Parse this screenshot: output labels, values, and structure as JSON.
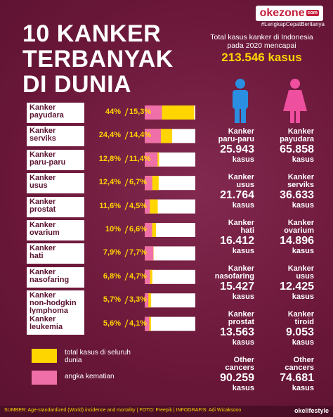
{
  "brand": {
    "logo": "okezone",
    "logo_suffix": "com",
    "tagline": "#LengkapCepatBeritanya"
  },
  "title": [
    "10 KANKER",
    "TERBANYAK",
    "DI DUNIA"
  ],
  "chart_data": {
    "type": "bar",
    "categories": [
      "Kanker payudara",
      "Kanker serviks",
      "Kanker paru-paru",
      "Kanker usus",
      "Kanker prostat",
      "Kanker ovarium",
      "Kanker hati",
      "Kanker nasofaring",
      "Kanker non-hodgkin lymphoma",
      "Kanker leukemia"
    ],
    "series": [
      {
        "name": "total kasus di seluruh dunia",
        "color": "#ffd500",
        "values": [
          44,
          24.4,
          12.8,
          12.4,
          11.6,
          10,
          7.9,
          6.8,
          5.7,
          5.6
        ],
        "value_labels": [
          "44%",
          "24,4%",
          "12,8%",
          "12,4%",
          "11,6%",
          "10%",
          "7,9%",
          "6,8%",
          "5,7%",
          "5,6%"
        ]
      },
      {
        "name": "angka kematian",
        "color": "#ef6fa8",
        "values": [
          15.3,
          14.4,
          11.4,
          6.7,
          4.5,
          6.6,
          7.7,
          4.7,
          3.3,
          4.1
        ],
        "value_labels": [
          "15,3%",
          "14,4%",
          "11,4%",
          "6,7%",
          "4,5%",
          "6,6%",
          "7,7%",
          "4,7%",
          "3,3%",
          "4,1%"
        ]
      }
    ]
  },
  "indonesia": {
    "intro": "Total kasus kanker di Indonesia pada 2020 mencapai",
    "total": "213.546 kasus",
    "unit": "kasus",
    "male": [
      {
        "name": "Kanker paru-paru",
        "count": "25.943"
      },
      {
        "name": "Kanker usus",
        "count": "21.764"
      },
      {
        "name": "Kanker hati",
        "count": "16.412"
      },
      {
        "name": "Kanker nasofaring",
        "count": "15.427"
      },
      {
        "name": "Kanker prostat",
        "count": "13.563"
      },
      {
        "name": "Other cancers",
        "count": "90.259"
      }
    ],
    "female": [
      {
        "name": "Kanker payudara",
        "count": "65.858"
      },
      {
        "name": "Kanker serviks",
        "count": "36.633"
      },
      {
        "name": "Kanker ovarium",
        "count": "14.896"
      },
      {
        "name": "Kanker usus",
        "count": "12.425"
      },
      {
        "name": "Kanker tiroid",
        "count": "9.053"
      },
      {
        "name": "Other cancers",
        "count": "74.681"
      }
    ]
  },
  "footer": {
    "credit": "SUMBER: Age-standardized (World) incidence and mortality | FOTO: Freepik | INFOGRAFIS: Adi Wicaksono",
    "brand": "okelifestyle"
  }
}
